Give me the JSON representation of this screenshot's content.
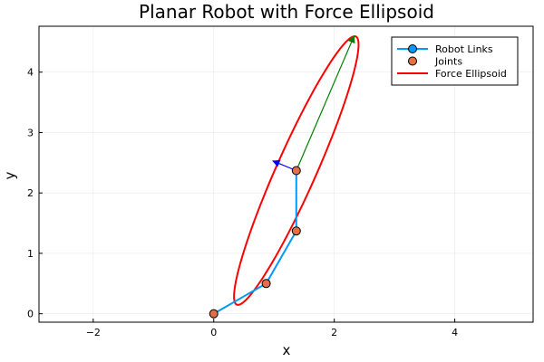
{
  "chart_data": {
    "type": "scatter",
    "title": "Planar Robot with Force Ellipsoid",
    "xlabel": "x",
    "ylabel": "y",
    "xlim": [
      -2.9,
      5.3
    ],
    "ylim": [
      -0.14,
      4.76
    ],
    "xticks": [
      -2,
      0,
      2,
      4
    ],
    "yticks": [
      0,
      1,
      2,
      3,
      4
    ],
    "xtick_labels": [
      "−2",
      "0",
      "2",
      "4"
    ],
    "ytick_labels": [
      "0",
      "1",
      "2",
      "3",
      "4"
    ],
    "grid": true,
    "legend_position": "top-right",
    "series": [
      {
        "name": "Robot Links",
        "kind": "line-with-markers",
        "color": "#009AFA",
        "x": [
          0,
          0.87,
          1.37,
          1.37
        ],
        "y": [
          0,
          0.5,
          1.37,
          2.37
        ]
      },
      {
        "name": "Joints",
        "kind": "markers",
        "color": "#E26F46",
        "x": [
          0,
          0.87,
          1.37,
          1.37
        ],
        "y": [
          0,
          0.5,
          1.37,
          2.37
        ]
      },
      {
        "name": "Force Ellipsoid",
        "kind": "closed-line",
        "color": "#FF0000",
        "center": [
          1.37,
          2.37
        ],
        "semi_major": 2.43,
        "semi_minor": 0.33,
        "major_axis_direction_deg": 66
      }
    ],
    "arrows": [
      {
        "color": "#0000FF",
        "from": [
          1.37,
          2.37
        ],
        "to": [
          0.98,
          2.53
        ]
      },
      {
        "color": "#008000",
        "from": [
          1.37,
          2.37
        ],
        "to": [
          2.33,
          4.6
        ]
      }
    ]
  }
}
